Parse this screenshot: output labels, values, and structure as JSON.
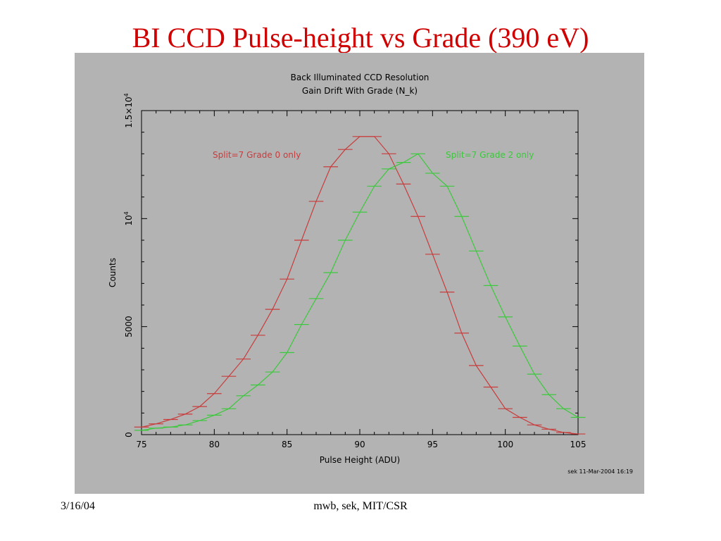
{
  "slide": {
    "title": "BI CCD Pulse-height vs Grade (390 eV)",
    "footer_date": "3/16/04",
    "footer_center": "mwb, sek, MIT/CSR"
  },
  "colors": {
    "panel_bg": "#b3b3b3",
    "title": "#d00000",
    "series_red": "#c83c3c",
    "series_green": "#3cc83c",
    "axes": "#000000"
  },
  "chart_data": {
    "type": "line",
    "title": "Back Illuminated CCD Resolution",
    "subtitle": "Gain Drift With Grade (N_k)",
    "xlabel": "Pulse Height (ADU)",
    "ylabel": "Counts",
    "xlim": [
      75,
      105
    ],
    "ylim": [
      0,
      15000
    ],
    "x_ticks": [
      {
        "value": 75,
        "label": "75"
      },
      {
        "value": 80,
        "label": "80"
      },
      {
        "value": 85,
        "label": "85"
      },
      {
        "value": 90,
        "label": "90"
      },
      {
        "value": 95,
        "label": "95"
      },
      {
        "value": 100,
        "label": "100"
      },
      {
        "value": 105,
        "label": "105"
      }
    ],
    "y_ticks": [
      {
        "value": 0,
        "label": "0",
        "sup": ""
      },
      {
        "value": 5000,
        "label": "5000",
        "sup": ""
      },
      {
        "value": 10000,
        "label": "10",
        "sup": "4"
      },
      {
        "value": 15000,
        "label": "1.5×10",
        "sup": "4"
      }
    ],
    "grid": false,
    "series": [
      {
        "name": "Split=7 Grade 0 only",
        "color": "#c83c3c",
        "x": [
          75,
          76,
          77,
          78,
          79,
          80,
          81,
          82,
          83,
          84,
          85,
          86,
          87,
          88,
          89,
          90,
          91,
          92,
          93,
          94,
          95,
          96,
          97,
          98,
          99,
          100,
          101,
          102,
          103,
          104,
          105
        ],
        "y": [
          350,
          500,
          700,
          950,
          1300,
          1900,
          2700,
          3500,
          4600,
          5800,
          7200,
          9000,
          10800,
          12400,
          13200,
          13800,
          13800,
          13000,
          11600,
          10100,
          8350,
          6600,
          4700,
          3200,
          2200,
          1200,
          800,
          450,
          250,
          100,
          30
        ]
      },
      {
        "name": "Split=7 Grade 2 only",
        "color": "#3cc83c",
        "x": [
          75,
          76,
          77,
          78,
          79,
          80,
          81,
          82,
          83,
          84,
          85,
          86,
          87,
          88,
          89,
          90,
          91,
          92,
          93,
          94,
          95,
          96,
          97,
          98,
          99,
          100,
          101,
          102,
          103,
          104,
          105
        ],
        "y": [
          200,
          300,
          350,
          450,
          650,
          900,
          1200,
          1800,
          2300,
          2900,
          3800,
          5100,
          6300,
          7500,
          9000,
          10300,
          11500,
          12300,
          12600,
          13000,
          12100,
          11500,
          10100,
          8500,
          6900,
          5450,
          4100,
          2800,
          1850,
          1200,
          800
        ]
      }
    ],
    "annotations": [
      {
        "text": "Split=7 Grade 0 only",
        "color": "#c83c3c"
      },
      {
        "text": "Split=7 Grade 2 only",
        "color": "#3cc83c"
      },
      {
        "text": "sek 11-Mar-2004 16:19",
        "color": "#000000"
      }
    ]
  }
}
